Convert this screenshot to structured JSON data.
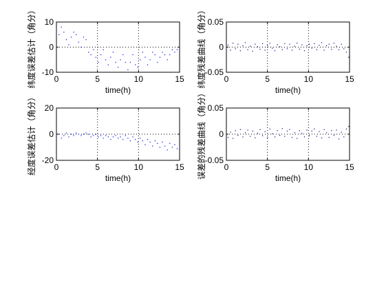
{
  "chart_data": [
    {
      "type": "scatter",
      "panel": "top-left",
      "xlabel": "time(h)",
      "ylabel": "纬度误差估计（角分）",
      "xlim": [
        0,
        15
      ],
      "ylim": [
        -10,
        10
      ],
      "xticks": [
        "0",
        "5",
        "10",
        "15"
      ],
      "yticks": [
        "-10",
        "0",
        "10"
      ],
      "grid": true,
      "marker_color": "#0000ff",
      "series": [
        {
          "x": [
            0.3,
            0.6,
            0.9,
            1.2,
            1.5,
            1.8,
            2.1,
            2.4,
            2.7,
            3.0,
            3.3,
            3.6,
            3.9,
            4.2,
            4.5,
            4.8,
            5.1,
            5.4,
            5.7,
            6.0,
            6.3,
            6.6,
            6.9,
            7.2,
            7.5,
            7.8,
            8.1,
            8.4,
            8.7,
            9.0,
            9.3,
            9.6,
            9.9,
            10.2,
            10.5,
            10.8,
            11.1,
            11.4,
            11.7,
            12.0,
            12.3,
            12.6,
            12.9,
            13.2,
            13.5,
            13.8,
            14.1,
            14.4,
            14.7
          ],
          "y": [
            5,
            8,
            6,
            3,
            1,
            4,
            6,
            5,
            2,
            0,
            4,
            3,
            -2,
            -3,
            -1,
            -4,
            -6,
            -3,
            -1,
            -5,
            -7,
            -4,
            -2,
            -6,
            -8,
            -5,
            -3,
            -6,
            -9,
            -6,
            -3,
            -7,
            -8,
            -5,
            -2,
            -4,
            -7,
            -5,
            -2,
            -3,
            -6,
            -4,
            -2,
            -3,
            -5,
            -3,
            -1,
            -2,
            -1
          ]
        }
      ]
    },
    {
      "type": "scatter",
      "panel": "top-right",
      "xlabel": "time(h)",
      "ylabel": "纬度残差曲线（角分）",
      "xlim": [
        0,
        15
      ],
      "ylim": [
        -0.05,
        0.05
      ],
      "xticks": [
        "0",
        "5",
        "10",
        "15"
      ],
      "yticks": [
        "-0.05",
        "0",
        "0.05"
      ],
      "grid": true,
      "marker_color": "#00008b",
      "series": [
        {
          "x": [
            0.2,
            0.5,
            0.8,
            1.1,
            1.4,
            1.7,
            2.0,
            2.3,
            2.6,
            2.9,
            3.2,
            3.5,
            3.8,
            4.1,
            4.4,
            4.7,
            5.0,
            5.3,
            5.6,
            5.9,
            6.2,
            6.5,
            6.8,
            7.1,
            7.4,
            7.7,
            8.0,
            8.3,
            8.6,
            8.9,
            9.2,
            9.5,
            9.8,
            10.1,
            10.4,
            10.7,
            11.0,
            11.3,
            11.6,
            11.9,
            12.2,
            12.5,
            12.8,
            13.1,
            13.4,
            13.7,
            14.0,
            14.3,
            14.6,
            14.9
          ],
          "y": [
            0.004,
            -0.006,
            0.008,
            -0.003,
            0.006,
            -0.007,
            0.003,
            0.009,
            -0.005,
            0.002,
            -0.008,
            0.006,
            0.001,
            -0.004,
            0.007,
            -0.006,
            0.003,
            0.008,
            -0.002,
            -0.007,
            0.005,
            0.001,
            -0.005,
            0.007,
            -0.003,
            0.006,
            -0.006,
            0.002,
            0.008,
            -0.004,
            0.005,
            -0.007,
            0.003,
            0.006,
            -0.002,
            0.007,
            -0.005,
            0.004,
            0.009,
            -0.006,
            0.003,
            0.006,
            -0.004,
            0.008,
            0.002,
            -0.005,
            0.006,
            -0.003,
            -0.01,
            -0.02
          ]
        }
      ]
    },
    {
      "type": "scatter",
      "panel": "bottom-left",
      "xlabel": "time(h)",
      "ylabel": "经度误差估计（角分）",
      "xlim": [
        0,
        15
      ],
      "ylim": [
        -20,
        20
      ],
      "xticks": [
        "0",
        "5",
        "10",
        "15"
      ],
      "yticks": [
        "-20",
        "0",
        "20"
      ],
      "grid": true,
      "marker_color": "#0000ff",
      "series": [
        {
          "x": [
            0.3,
            0.6,
            0.9,
            1.2,
            1.5,
            1.8,
            2.1,
            2.4,
            2.7,
            3.0,
            3.3,
            3.6,
            3.9,
            4.2,
            4.5,
            4.8,
            5.1,
            5.4,
            5.7,
            6.0,
            6.3,
            6.6,
            6.9,
            7.2,
            7.5,
            7.8,
            8.1,
            8.4,
            8.7,
            9.0,
            9.3,
            9.6,
            9.9,
            10.2,
            10.5,
            10.8,
            11.1,
            11.4,
            11.7,
            12.0,
            12.3,
            12.6,
            12.9,
            13.2,
            13.5,
            13.8,
            14.1,
            14.4,
            14.7
          ],
          "y": [
            0,
            -3,
            -1,
            1,
            -2,
            0,
            -1,
            1,
            0,
            -1,
            0,
            1,
            0,
            -2,
            -1,
            0,
            -2,
            -1,
            -3,
            -1,
            -2,
            -4,
            -2,
            -1,
            -3,
            -2,
            -4,
            -1,
            -3,
            -5,
            -2,
            -4,
            -6,
            -3,
            -5,
            -8,
            -4,
            -6,
            -9,
            -5,
            -7,
            -10,
            -6,
            -9,
            -12,
            -7,
            -10,
            -8,
            -11
          ]
        }
      ]
    },
    {
      "type": "scatter",
      "panel": "bottom-right",
      "xlabel": "time(h)",
      "ylabel": "误差的残差曲线（角分）",
      "xlim": [
        0,
        15
      ],
      "ylim": [
        -0.05,
        0.05
      ],
      "xticks": [
        "0",
        "5",
        "10",
        "15"
      ],
      "yticks": [
        "-0.05",
        "0",
        "0.05"
      ],
      "grid": true,
      "marker_color": "#00008b",
      "series": [
        {
          "x": [
            0.2,
            0.5,
            0.8,
            1.1,
            1.4,
            1.7,
            2.0,
            2.3,
            2.6,
            2.9,
            3.2,
            3.5,
            3.8,
            4.1,
            4.4,
            4.7,
            5.0,
            5.3,
            5.6,
            5.9,
            6.2,
            6.5,
            6.8,
            7.1,
            7.4,
            7.7,
            8.0,
            8.3,
            8.6,
            8.9,
            9.2,
            9.5,
            9.8,
            10.1,
            10.4,
            10.7,
            11.0,
            11.3,
            11.6,
            11.9,
            12.2,
            12.5,
            12.8,
            13.1,
            13.4,
            13.7,
            14.0,
            14.3,
            14.6,
            14.9
          ],
          "y": [
            -0.006,
            0.004,
            -0.008,
            0.007,
            -0.002,
            0.009,
            -0.005,
            0.003,
            0.008,
            -0.004,
            0.006,
            -0.007,
            0.002,
            0.009,
            -0.003,
            0.005,
            -0.006,
            0.01,
            0.001,
            -0.005,
            0.007,
            -0.002,
            0.011,
            -0.004,
            0.006,
            0.009,
            -0.006,
            0.003,
            -0.008,
            0.007,
            0.002,
            -0.005,
            0.008,
            -0.003,
            0.006,
            0.01,
            -0.004,
            0.005,
            -0.007,
            0.009,
            0.003,
            -0.006,
            0.007,
            -0.002,
            0.008,
            -0.009,
            0.004,
            -0.005,
            0.01,
            0.015
          ]
        }
      ]
    }
  ]
}
